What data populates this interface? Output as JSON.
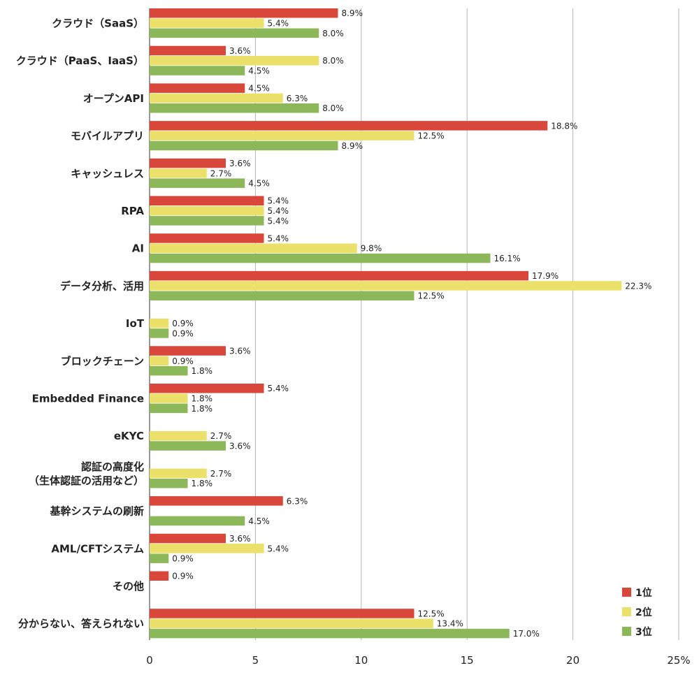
{
  "chart_data": {
    "type": "bar",
    "orientation": "horizontal",
    "categories": [
      [
        "クラウド（SaaS）"
      ],
      [
        "クラウド（PaaS、IaaS）"
      ],
      [
        "オープンAPI"
      ],
      [
        "モバイルアプリ"
      ],
      [
        "キャッシュレス"
      ],
      [
        "RPA"
      ],
      [
        "AI"
      ],
      [
        "データ分析、活用"
      ],
      [
        "IoT"
      ],
      [
        "ブロックチェーン"
      ],
      [
        "Embedded Finance"
      ],
      [
        "eKYC"
      ],
      [
        "認証の高度化",
        "（生体認証の活用など）"
      ],
      [
        "基幹システムの刷新"
      ],
      [
        "AML/CFTシステム"
      ],
      [
        "その他"
      ],
      [
        "分からない、答えられない"
      ]
    ],
    "series": [
      {
        "name": "1位",
        "color": "#d9473a",
        "values": [
          8.9,
          3.6,
          4.5,
          18.8,
          3.6,
          5.4,
          5.4,
          17.9,
          null,
          3.6,
          5.4,
          null,
          null,
          6.3,
          3.6,
          0.9,
          12.5
        ],
        "labels": [
          "8.9%",
          "3.6%",
          "4.5%",
          "18.8%",
          "3.6%",
          "5.4%",
          "5.4%",
          "17.9%",
          null,
          "3.6%",
          "5.4%",
          null,
          null,
          "6.3%",
          "3.6%",
          "0.9%",
          "12.5%"
        ]
      },
      {
        "name": "2位",
        "color": "#ebe06a",
        "values": [
          5.4,
          8.0,
          6.3,
          12.5,
          2.7,
          5.4,
          9.8,
          22.3,
          0.9,
          0.9,
          1.8,
          2.7,
          2.7,
          null,
          5.4,
          null,
          13.4
        ],
        "labels": [
          "5.4%",
          "8.0%",
          "6.3%",
          "12.5%",
          "2.7%",
          "5.4%",
          "9.8%",
          "22.3%",
          "0.9%",
          "0.9%",
          "1.8%",
          "2.7%",
          "2.7%",
          null,
          "5.4%",
          null,
          "13.4%"
        ]
      },
      {
        "name": "3位",
        "color": "#8cb85a",
        "values": [
          8.0,
          4.5,
          8.0,
          8.9,
          4.5,
          5.4,
          16.1,
          12.5,
          0.9,
          1.8,
          1.8,
          3.6,
          1.8,
          4.5,
          0.9,
          null,
          17.0
        ],
        "labels": [
          "8.0%",
          "4.5%",
          "8.0%",
          "8.9%",
          "4.5%",
          "5.4%",
          "16.1%",
          "12.5%",
          "0.9%",
          "1.8%",
          "1.8%",
          "3.6%",
          "1.8%",
          "4.5%",
          "0.9%",
          null,
          "17.0%"
        ]
      }
    ],
    "x_ticks": [
      "0",
      "5",
      "10",
      "15",
      "20",
      "25%"
    ],
    "xlim": [
      0,
      25
    ],
    "grid": true,
    "legend_position": "bottom-right"
  }
}
